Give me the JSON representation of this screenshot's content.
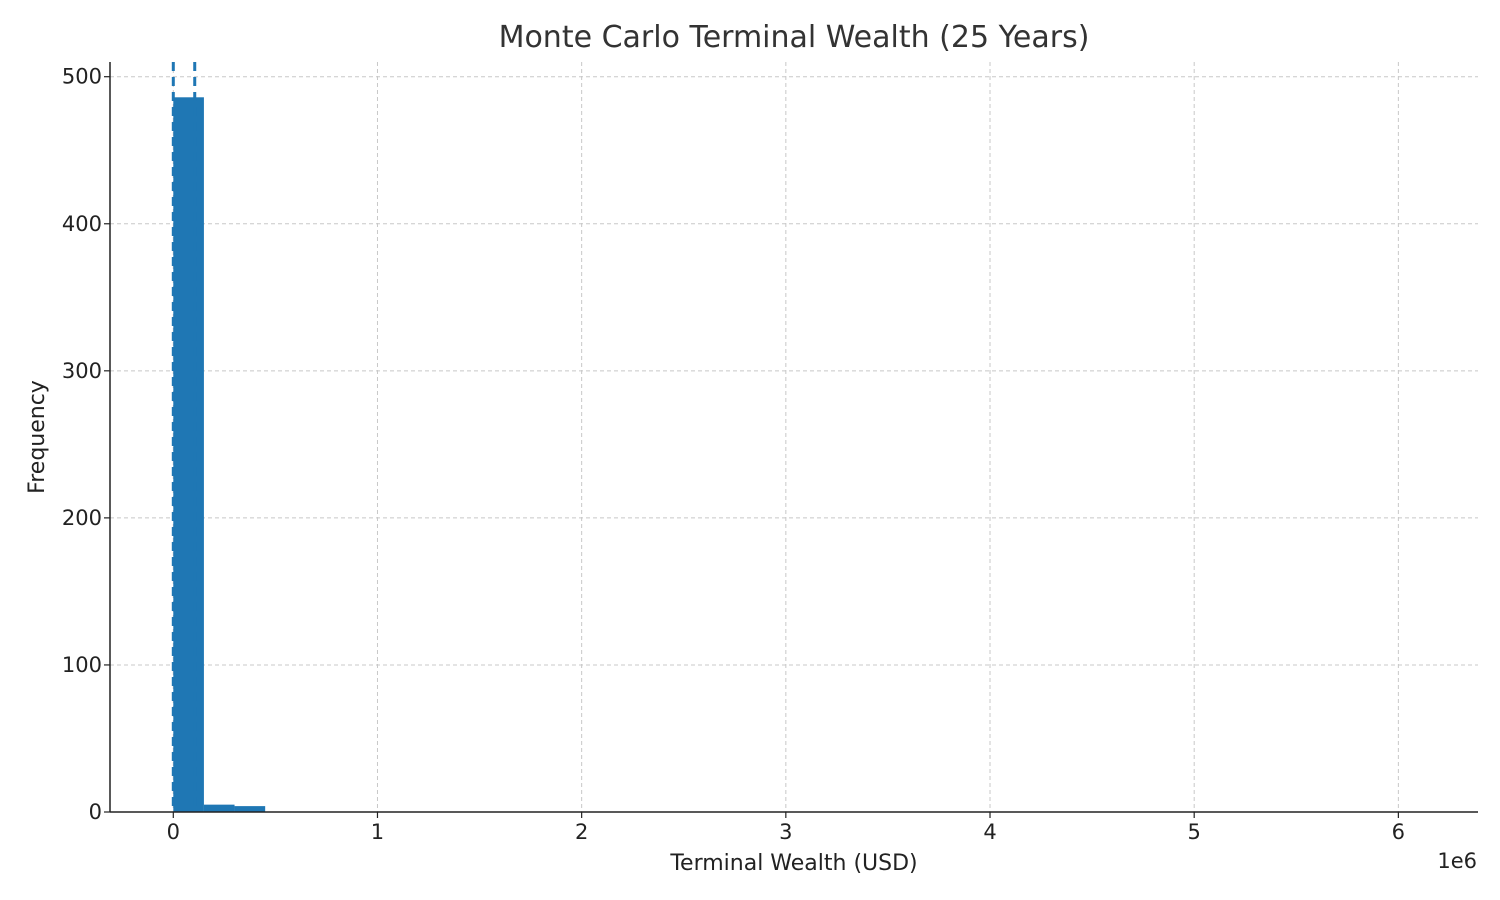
{
  "chart_data": {
    "type": "bar",
    "title": "Monte Carlo Terminal Wealth (25 Years)",
    "xlabel": "Terminal Wealth (USD)",
    "ylabel": "Frequency",
    "x_offset_label": "1e6",
    "xlim": [
      -0.31,
      6.39
    ],
    "ylim": [
      0,
      510
    ],
    "x_ticks": [
      0,
      1,
      2,
      3,
      4,
      5,
      6
    ],
    "x_tick_labels": [
      "0",
      "1",
      "2",
      "3",
      "4",
      "5",
      "6"
    ],
    "y_ticks": [
      0,
      100,
      200,
      300,
      400,
      500
    ],
    "y_tick_labels": [
      "0",
      "100",
      "200",
      "300",
      "400",
      "500"
    ],
    "bar_color": "#1f77b4",
    "grid": true,
    "bins": [
      {
        "x0": 0.0,
        "x1": 0.15,
        "count": 486
      },
      {
        "x0": 0.15,
        "x1": 0.3,
        "count": 5
      },
      {
        "x0": 0.3,
        "x1": 0.45,
        "count": 4
      }
    ],
    "vlines": [
      {
        "x": 0.0,
        "style": "dashed"
      },
      {
        "x": 0.105,
        "style": "dashed"
      }
    ]
  }
}
